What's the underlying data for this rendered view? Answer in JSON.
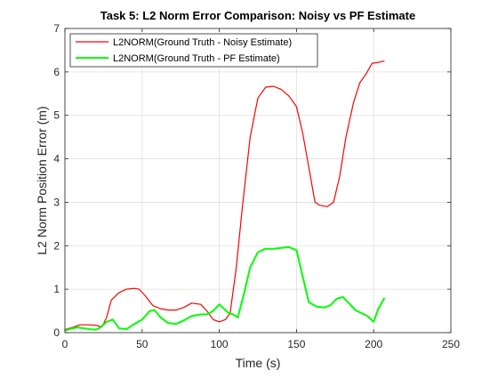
{
  "chart_data": {
    "type": "line",
    "title": "Task 5: L2 Norm Error Comparison: Noisy vs PF Estimate",
    "xlabel": "Time (s)",
    "ylabel": "L2 Norm Position Error (m)",
    "xlim": [
      0,
      250
    ],
    "ylim": [
      0,
      7
    ],
    "xticks": [
      0,
      50,
      100,
      150,
      200,
      250
    ],
    "yticks": [
      0,
      1,
      2,
      3,
      4,
      5,
      6,
      7
    ],
    "grid": true,
    "legend_position": "top-left",
    "series": [
      {
        "name": "L2NORM(Ground Truth - Noisy Estimate)",
        "color": "#ff0000",
        "x": [
          0,
          5,
          10,
          15,
          20,
          24,
          27,
          30,
          35,
          40,
          45,
          48,
          52,
          57,
          62,
          67,
          72,
          77,
          82,
          88,
          92,
          96,
          100,
          104,
          107,
          111,
          115,
          120,
          125,
          130,
          135,
          140,
          145,
          150,
          154,
          158,
          162,
          165,
          170,
          174,
          178,
          182,
          187,
          191,
          195,
          199,
          203,
          207
        ],
        "y": [
          0.07,
          0.12,
          0.18,
          0.18,
          0.17,
          0.13,
          0.35,
          0.75,
          0.92,
          1.0,
          1.02,
          1.0,
          0.85,
          0.62,
          0.55,
          0.52,
          0.52,
          0.58,
          0.68,
          0.65,
          0.5,
          0.3,
          0.25,
          0.3,
          0.45,
          1.5,
          2.9,
          4.5,
          5.4,
          5.65,
          5.67,
          5.6,
          5.45,
          5.2,
          4.6,
          3.8,
          3.0,
          2.93,
          2.9,
          3.0,
          3.6,
          4.5,
          5.3,
          5.75,
          5.95,
          6.2,
          6.22,
          6.25
        ]
      },
      {
        "name": "L2NORM(Ground Truth - PF Estimate)",
        "color": "#00ff00",
        "x": [
          0,
          5,
          8,
          12,
          16,
          20,
          23,
          27,
          31,
          35,
          40,
          45,
          50,
          55,
          58,
          62,
          67,
          72,
          77,
          82,
          88,
          92,
          96,
          100,
          103,
          106,
          109,
          112,
          116,
          120,
          125,
          130,
          135,
          140,
          145,
          150,
          154,
          158,
          163,
          168,
          172,
          176,
          180,
          184,
          188,
          192,
          196,
          200,
          203,
          207
        ],
        "y": [
          0.05,
          0.1,
          0.12,
          0.1,
          0.08,
          0.07,
          0.12,
          0.25,
          0.3,
          0.1,
          0.08,
          0.2,
          0.3,
          0.5,
          0.52,
          0.35,
          0.22,
          0.2,
          0.28,
          0.38,
          0.42,
          0.42,
          0.5,
          0.65,
          0.55,
          0.45,
          0.42,
          0.35,
          0.9,
          1.5,
          1.85,
          1.93,
          1.93,
          1.95,
          1.97,
          1.9,
          1.3,
          0.7,
          0.6,
          0.58,
          0.63,
          0.78,
          0.82,
          0.68,
          0.52,
          0.45,
          0.38,
          0.25,
          0.55,
          0.8
        ]
      }
    ]
  }
}
